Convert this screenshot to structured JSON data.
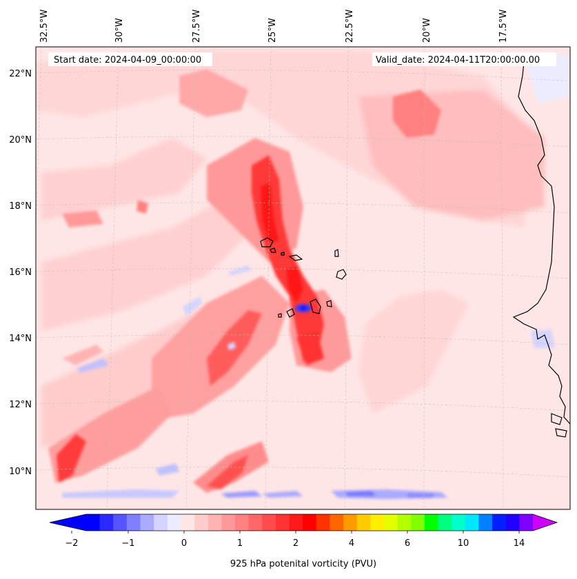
{
  "header": {
    "start_label": "Start date: 2024-04-09_00:00:00",
    "valid_label": "Valid_date: 2024-04-11T20:00:00.00"
  },
  "map": {
    "projection": "lambert-conformal",
    "variable": "925 hPa potential vorticity",
    "region": "Cape Verde / West Africa coast",
    "lon_labels": [
      "32.5°W",
      "30°W",
      "27.5°W",
      "25°W",
      "22.5°W",
      "20°W",
      "17.5°W"
    ],
    "lat_labels": [
      "22°N",
      "20°N",
      "18°N",
      "16°N",
      "14°N",
      "12°N",
      "10°N"
    ],
    "features": [
      "pv-filament",
      "cape-verde-islands",
      "african-coastline",
      "negative-pv-bands"
    ]
  },
  "colorbar": {
    "label": "925 hPa potenital vorticity (PVU)",
    "ticks": [
      "−2",
      "−1",
      "0",
      "1",
      "2",
      "4",
      "6",
      "10",
      "14"
    ],
    "colors": [
      "#0000ff",
      "#2a2aff",
      "#5555ff",
      "#7f7fff",
      "#aaaaff",
      "#d4d4ff",
      "#ececff",
      "#ffe6e6",
      "#ffcccc",
      "#ffb3b3",
      "#ff9999",
      "#ff8080",
      "#ff6666",
      "#ff4d4d",
      "#ff3333",
      "#ff1a1a",
      "#ff0000",
      "#ff3300",
      "#ff6600",
      "#ff9900",
      "#ffcc00",
      "#ffee00",
      "#e6ff00",
      "#b3ff00",
      "#80ff00",
      "#00ff00",
      "#00ff80",
      "#00ffcc",
      "#00e6ff",
      "#0080ff",
      "#0020ff",
      "#2000ff",
      "#8000ff"
    ],
    "under_color": "#0000ff",
    "over_color": "#cc00ff"
  }
}
